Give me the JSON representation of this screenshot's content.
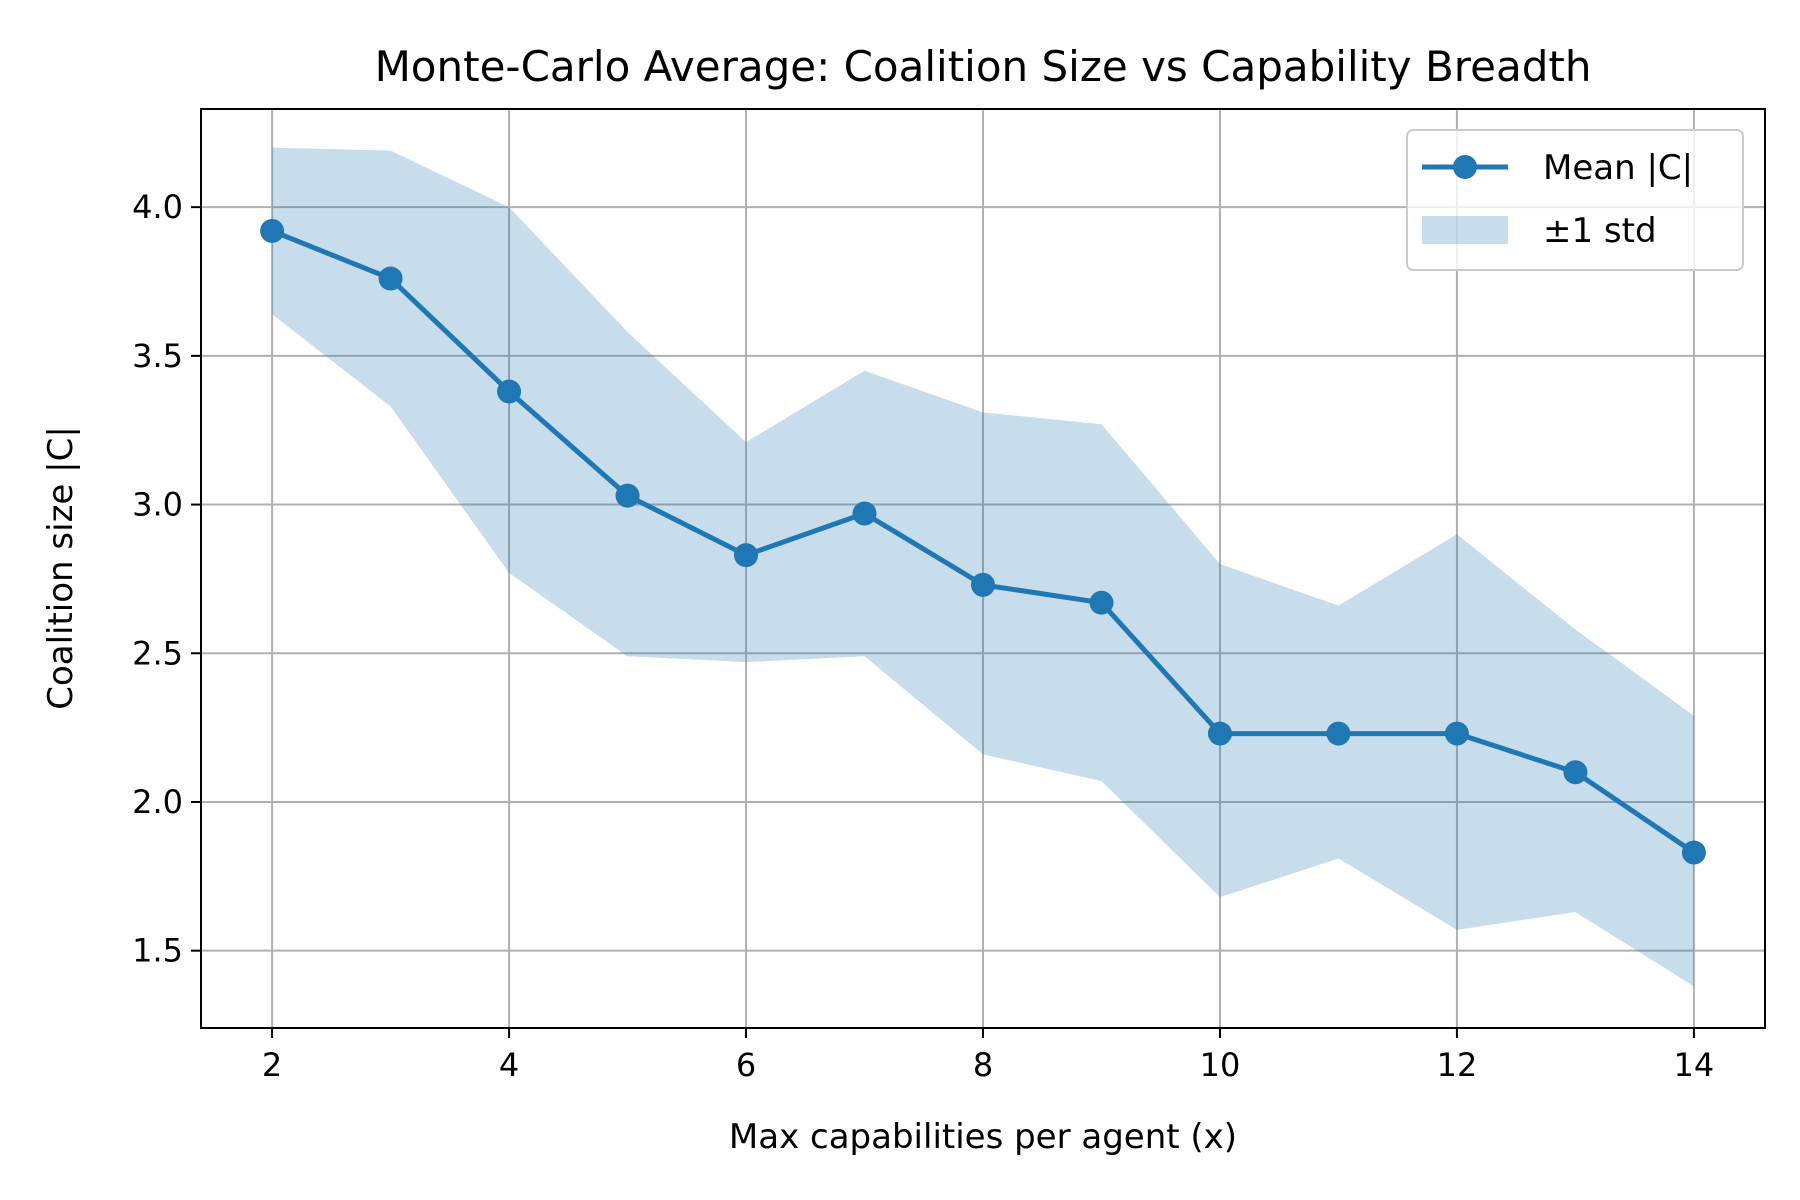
{
  "chart_data": {
    "type": "line",
    "title": "Monte-Carlo Average: Coalition Size vs Capability Breadth",
    "xlabel": "Max capabilities per agent (x)",
    "ylabel": "Coalition size |C|",
    "xlim": [
      1.4,
      14.6
    ],
    "ylim": [
      1.24,
      4.33
    ],
    "x_ticks": [
      2,
      4,
      6,
      8,
      10,
      12,
      14
    ],
    "x_tick_labels": [
      "2",
      "4",
      "6",
      "8",
      "10",
      "12",
      "14"
    ],
    "y_ticks": [
      1.5,
      2.0,
      2.5,
      3.0,
      3.5,
      4.0
    ],
    "y_tick_labels": [
      "1.5",
      "2.0",
      "2.5",
      "3.0",
      "3.5",
      "4.0"
    ],
    "grid": true,
    "legend_position": "top-right",
    "x": [
      2,
      3,
      4,
      5,
      6,
      7,
      8,
      9,
      10,
      11,
      12,
      13,
      14
    ],
    "series": [
      {
        "name": "Mean |C|",
        "kind": "line-marker",
        "color": "#1f77b4",
        "values": [
          3.92,
          3.76,
          3.38,
          3.03,
          2.83,
          2.97,
          2.73,
          2.67,
          2.23,
          2.23,
          2.23,
          2.1,
          1.83
        ]
      },
      {
        "name": "±1 std",
        "kind": "band",
        "color": "#1f77b4",
        "opacity": 0.25,
        "upper": [
          4.2,
          4.19,
          4.0,
          3.58,
          3.21,
          3.45,
          3.31,
          3.27,
          2.8,
          2.66,
          2.9,
          2.58,
          2.29
        ],
        "lower": [
          3.64,
          3.33,
          2.77,
          2.49,
          2.47,
          2.49,
          2.16,
          2.07,
          1.68,
          1.81,
          1.57,
          1.63,
          1.38
        ]
      }
    ]
  }
}
